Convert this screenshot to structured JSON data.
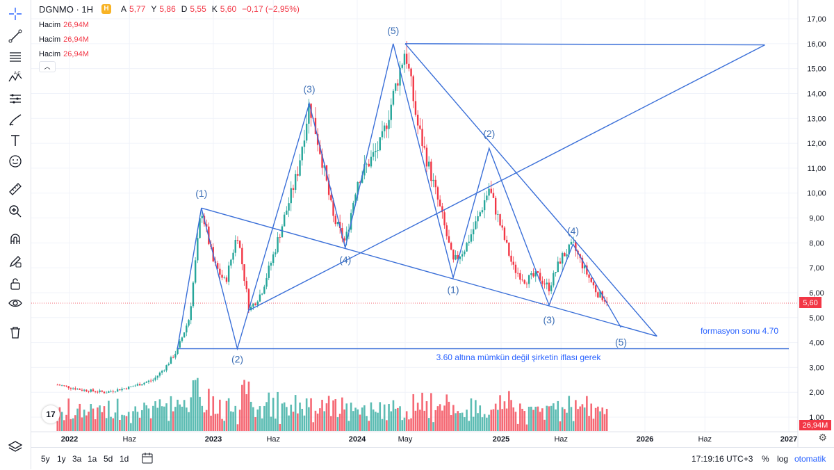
{
  "legend": {
    "symbol": "DGNMO · 1H",
    "badge": "H",
    "open_label": "A",
    "open": "5,77",
    "high_label": "Y",
    "high": "5,86",
    "low_label": "D",
    "low": "5,55",
    "close_label": "K",
    "close": "5,60",
    "change": "−0,17 (−2,95%)",
    "volumes": [
      {
        "label": "Hacim",
        "value": "26,94M"
      },
      {
        "label": "Hacim",
        "value": "26,94M"
      },
      {
        "label": "Hacim",
        "value": "26,94M"
      }
    ]
  },
  "toolbar_icons": [
    "crosshair-icon",
    "trend-line-icon",
    "fib-icon",
    "pattern-icon",
    "forecast-icon",
    "brush-icon",
    "text-icon",
    "emoji-icon",
    "ruler-icon",
    "zoom-icon",
    "magnet-icon",
    "lock-draw-icon",
    "lock-icon",
    "eye-icon",
    "trash-icon"
  ],
  "bottom_bar": {
    "ranges": [
      "5y",
      "1y",
      "3a",
      "1a",
      "5d",
      "1d"
    ],
    "time": "17:19:16 UTC+3",
    "percent": "%",
    "log": "log",
    "auto": "otomatik"
  },
  "chart_data": {
    "type": "candlestick",
    "symbol": "DGNMO",
    "x_axis_labels": [
      "2022",
      "Haz",
      "2023",
      "Haz",
      "2024",
      "May",
      "2025",
      "Haz",
      "2026",
      "Haz",
      "2027"
    ],
    "y_ticks": [
      "17,00",
      "16,00",
      "15,00",
      "14,00",
      "13,00",
      "12,00",
      "11,00",
      "10,00",
      "9,00",
      "8,00",
      "7,00",
      "6,00",
      "5,00",
      "4,00",
      "3,00",
      "2,00",
      "1,00"
    ],
    "ylim": [
      0.5,
      17.5
    ],
    "price_label": "5,60",
    "volume_label": "26,94M",
    "colors": {
      "up": "#26a69a",
      "down": "#f23645",
      "drawing": "#3a6fd8",
      "label": "#2962ff",
      "wave": "#3d6fb6"
    },
    "price_path": [
      [
        "2021-12",
        2.3
      ],
      [
        "2022-02",
        2.1
      ],
      [
        "2022-04",
        2.0
      ],
      [
        "2022-06",
        2.2
      ],
      [
        "2022-08",
        2.5
      ],
      [
        "2022-09",
        3.0
      ],
      [
        "2022-10",
        3.7
      ],
      [
        "2022-11",
        5.0
      ],
      [
        "2022-12",
        9.4
      ],
      [
        "2023-01",
        7.2
      ],
      [
        "2023-02",
        6.4
      ],
      [
        "2023-03",
        8.4
      ],
      [
        "2023-04",
        5.3
      ],
      [
        "2023-05",
        6.0
      ],
      [
        "2023-06",
        7.5
      ],
      [
        "2023-08",
        10.8
      ],
      [
        "2023-09",
        13.6
      ],
      [
        "2023-10",
        11.5
      ],
      [
        "2023-11",
        9.0
      ],
      [
        "2023-12",
        8.0
      ],
      [
        "2024-01",
        10.5
      ],
      [
        "2024-03",
        12.0
      ],
      [
        "2024-05",
        15.8
      ],
      [
        "2024-06",
        12.8
      ],
      [
        "2024-07",
        11.0
      ],
      [
        "2024-08",
        9.2
      ],
      [
        "2024-09",
        7.2
      ],
      [
        "2024-10",
        7.8
      ],
      [
        "2024-11",
        8.9
      ],
      [
        "2024-12",
        10.2
      ],
      [
        "2025-01",
        8.6
      ],
      [
        "2025-02",
        7.0
      ],
      [
        "2025-03",
        6.5
      ],
      [
        "2025-04",
        6.7
      ],
      [
        "2025-05",
        6.2
      ],
      [
        "2025-06",
        7.4
      ],
      [
        "2025-07",
        7.9
      ],
      [
        "2025-08",
        6.9
      ],
      [
        "2025-09",
        6.0
      ],
      [
        "2025-10",
        5.6
      ]
    ],
    "waves": [
      {
        "label": "(1)",
        "date": "2022-12",
        "price": 9.4
      },
      {
        "label": "(2)",
        "date": "2023-03",
        "price": 3.75
      },
      {
        "label": "(3)",
        "date": "2023-09",
        "price": 13.6
      },
      {
        "label": "(4)",
        "date": "2023-12",
        "price": 7.8
      },
      {
        "label": "(5)",
        "date": "2024-04",
        "price": 16.0
      },
      {
        "label": "(1)",
        "date": "2024-09",
        "price": 6.6
      },
      {
        "label": "(2)",
        "date": "2024-12",
        "price": 11.8
      },
      {
        "label": "(3)",
        "date": "2025-05",
        "price": 5.5
      },
      {
        "label": "(4)",
        "date": "2025-07",
        "price": 7.95
      },
      {
        "label": "(5)",
        "date": "2025-11",
        "price": 4.6
      }
    ],
    "annotations": [
      "formasyon sonu 4.70",
      "3.60 altına mümkün değil şirketin iflası gerek"
    ]
  }
}
